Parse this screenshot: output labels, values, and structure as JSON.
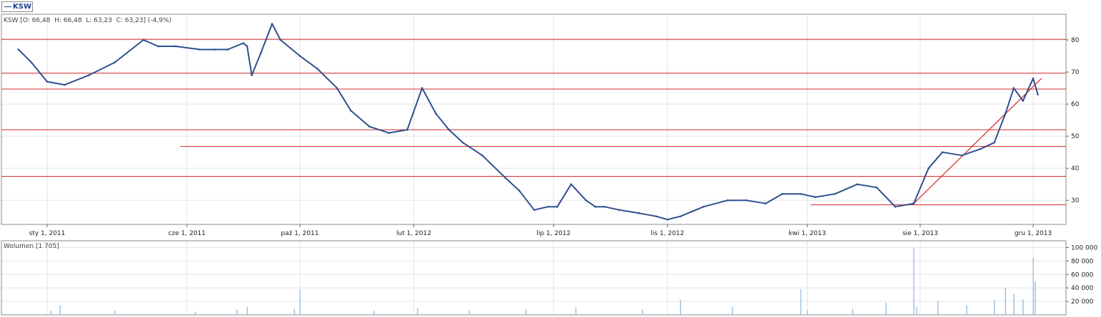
{
  "legend": {
    "ticker": "KSW"
  },
  "header": {
    "info": "KSW [O: 66,48  H: 66,48  L: 63,23  C: 63,23] (-4,9%)",
    "volume_label": "Wolumen [1 705]"
  },
  "colors": {
    "price": "#2e4f8f",
    "support_lines": "#d42a2a",
    "volume": "#9fc0e6",
    "grid": "#e4e4e4",
    "frame": "#8a8a8a"
  },
  "chart_data": [
    {
      "type": "line",
      "name": "KSW",
      "x_ticks": [
        {
          "date": "2011-01-01",
          "label": "sty 1, 2011"
        },
        {
          "date": "2011-06-01",
          "label": "cze 1, 2011"
        },
        {
          "date": "2011-10-01",
          "label": "paź 1, 2011"
        },
        {
          "date": "2012-02-01",
          "label": "lut 1, 2012"
        },
        {
          "date": "2012-07-01",
          "label": "lip 1, 2012"
        },
        {
          "date": "2012-11-01",
          "label": "lis 1, 2012"
        },
        {
          "date": "2013-04-01",
          "label": "kwi 1, 2013"
        },
        {
          "date": "2013-08-01",
          "label": "sie 1, 2013"
        },
        {
          "date": "2013-12-01",
          "label": "gru 1, 2013"
        }
      ],
      "y_ticks": [
        30,
        40,
        50,
        60,
        70,
        80
      ],
      "ylim": [
        22.5,
        88
      ],
      "x": [
        "2010-12-01",
        "2010-12-15",
        "2011-01-01",
        "2011-01-20",
        "2011-02-15",
        "2011-03-15",
        "2011-04-15",
        "2011-05-01",
        "2011-05-20",
        "2011-06-15",
        "2011-07-01",
        "2011-07-15",
        "2011-08-01",
        "2011-08-05",
        "2011-08-10",
        "2011-08-20",
        "2011-09-01",
        "2011-09-10",
        "2011-10-01",
        "2011-10-20",
        "2011-11-10",
        "2011-11-25",
        "2011-12-15",
        "2012-01-05",
        "2012-01-25",
        "2012-02-10",
        "2012-02-25",
        "2012-03-10",
        "2012-03-25",
        "2012-04-15",
        "2012-05-10",
        "2012-05-25",
        "2012-06-10",
        "2012-06-25",
        "2012-07-05",
        "2012-07-20",
        "2012-08-05",
        "2012-08-15",
        "2012-08-25",
        "2012-09-10",
        "2012-10-01",
        "2012-10-20",
        "2012-11-01",
        "2012-11-15",
        "2012-12-10",
        "2013-01-05",
        "2013-01-25",
        "2013-02-15",
        "2013-03-05",
        "2013-03-25",
        "2013-04-10",
        "2013-05-01",
        "2013-05-25",
        "2013-06-15",
        "2013-07-05",
        "2013-07-25",
        "2013-08-10",
        "2013-08-25",
        "2013-09-15",
        "2013-10-05",
        "2013-10-20",
        "2013-11-01",
        "2013-11-10",
        "2013-11-20",
        "2013-12-01",
        "2013-12-06"
      ],
      "values": [
        77,
        73,
        67,
        66,
        69,
        73,
        80,
        78,
        78,
        77,
        77,
        77,
        79,
        78,
        69,
        76,
        85,
        80,
        75,
        71,
        65,
        58,
        53,
        51,
        52,
        65,
        57,
        52,
        48,
        44,
        37,
        33,
        27,
        28,
        28,
        35,
        30,
        28,
        28,
        27,
        26,
        25,
        24,
        25,
        28,
        30,
        30,
        29,
        32,
        32,
        31,
        32,
        35,
        34,
        28,
        29,
        40,
        45,
        44,
        46,
        48,
        57,
        65,
        61,
        68,
        63
      ],
      "reference_lines": {
        "horizontal": [
          {
            "y": 80.2
          },
          {
            "y": 69.6
          },
          {
            "y": 64.7
          },
          {
            "y": 52.0
          },
          {
            "y": 37.5
          },
          {
            "y": 46.8,
            "start": "2011-05-25"
          },
          {
            "y": 28.6,
            "start": "2013-04-05"
          }
        ],
        "trend": {
          "x0": "2013-07-25",
          "y0": 29,
          "x1": "2013-12-10",
          "y1": 68
        }
      },
      "grid": true
    },
    {
      "type": "bar",
      "name": "Wolumen",
      "y_ticks": [
        20000,
        40000,
        60000,
        80000,
        100000
      ],
      "y_tick_labels": [
        "20 000",
        "40 000",
        "60 000",
        "80 000",
        "100 000"
      ],
      "ylim": [
        0,
        110000
      ],
      "x": [
        "2011-01-05",
        "2011-01-15",
        "2011-03-15",
        "2011-06-10",
        "2011-07-25",
        "2011-08-05",
        "2011-09-25",
        "2011-10-01",
        "2011-12-20",
        "2012-02-05",
        "2012-04-01",
        "2012-06-01",
        "2012-07-25",
        "2012-10-05",
        "2012-11-15",
        "2013-01-10",
        "2013-03-25",
        "2013-04-01",
        "2013-05-20",
        "2013-06-25",
        "2013-07-25",
        "2013-07-28",
        "2013-08-20",
        "2013-09-20",
        "2013-10-20",
        "2013-11-01",
        "2013-11-10",
        "2013-11-20",
        "2013-12-01",
        "2013-12-03"
      ],
      "values": [
        6000,
        14000,
        6000,
        5000,
        8000,
        12000,
        9000,
        38000,
        6000,
        10000,
        7000,
        9000,
        11000,
        8000,
        22000,
        12000,
        38000,
        7000,
        9000,
        18000,
        100000,
        12000,
        21000,
        14000,
        22000,
        40000,
        31000,
        23000,
        85000,
        50000
      ],
      "grid": true
    }
  ]
}
